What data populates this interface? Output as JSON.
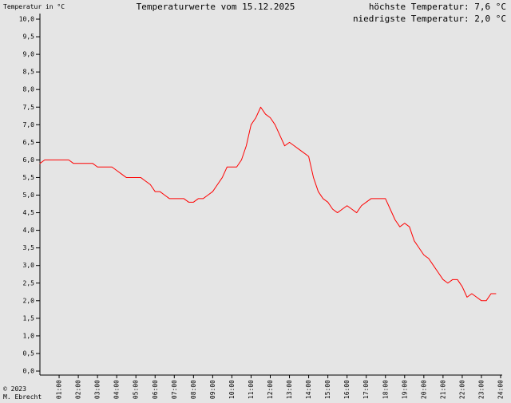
{
  "header": {
    "ylabel": "Temperatur in °C",
    "title": "Temperaturwerte vom 15.12.2025",
    "high": "höchste Temperatur: 7,6 °C",
    "low": "niedrigste Temperatur: 2,0 °C"
  },
  "footer": {
    "copyright": "© 2023",
    "author": "M. Ebrecht"
  },
  "colors": {
    "background": "#e5e5e5",
    "line": "#ff0000",
    "axis": "#000000",
    "text": "#000000"
  },
  "chart_data": {
    "type": "line",
    "title": "Temperaturwerte vom 15.12.2025",
    "xlabel": "",
    "ylabel": "Temperatur in °C",
    "xlim": [
      0,
      24
    ],
    "ylim": [
      0,
      10
    ],
    "grid": false,
    "legend": "none",
    "x_ticks": [
      "01:00",
      "02:00",
      "03:00",
      "04:00",
      "05:00",
      "06:00",
      "07:00",
      "08:00",
      "09:00",
      "10:00",
      "11:00",
      "12:00",
      "13:00",
      "14:00",
      "15:00",
      "16:00",
      "17:00",
      "18:00",
      "19:00",
      "20:00",
      "21:00",
      "22:00",
      "23:00",
      "24:00"
    ],
    "y_ticks": [
      "0,0",
      "0,5",
      "1,0",
      "1,5",
      "2,0",
      "2,5",
      "3,0",
      "3,5",
      "4,0",
      "4,5",
      "5,0",
      "5,5",
      "6,0",
      "6,5",
      "7,0",
      "7,5",
      "8,0",
      "8,5",
      "9,0",
      "9,5",
      "10,0"
    ],
    "series": [
      {
        "x": [
          0.0,
          0.25,
          0.5,
          0.75,
          1.0,
          1.25,
          1.5,
          1.75,
          2.0,
          2.25,
          2.5,
          2.75,
          3.0,
          3.25,
          3.5,
          3.75,
          4.0,
          4.25,
          4.5,
          4.75,
          5.0,
          5.25,
          5.5,
          5.75,
          6.0,
          6.25,
          6.5,
          6.75,
          7.0,
          7.25,
          7.5,
          7.75,
          8.0,
          8.25,
          8.5,
          8.75,
          9.0,
          9.25,
          9.5,
          9.75,
          10.0,
          10.25,
          10.5,
          10.75,
          11.0,
          11.25,
          11.5,
          11.75,
          12.0,
          12.25,
          12.5,
          12.75,
          13.0,
          13.25,
          13.5,
          13.75,
          14.0,
          14.25,
          14.5,
          14.75,
          15.0,
          15.25,
          15.5,
          15.75,
          16.0,
          16.25,
          16.5,
          16.75,
          17.0,
          17.25,
          17.5,
          17.75,
          18.0,
          18.25,
          18.5,
          18.75,
          19.0,
          19.25,
          19.5,
          19.75,
          20.0,
          20.25,
          20.5,
          20.75,
          21.0,
          21.25,
          21.5,
          21.75,
          22.0,
          22.25,
          22.5,
          22.75,
          23.0,
          23.25,
          23.5,
          23.75
        ],
        "values": [
          5.9,
          6.0,
          6.0,
          6.0,
          6.0,
          6.0,
          6.0,
          5.9,
          5.9,
          5.9,
          5.9,
          5.9,
          5.8,
          5.8,
          5.8,
          5.8,
          5.7,
          5.6,
          5.5,
          5.5,
          5.5,
          5.5,
          5.4,
          5.3,
          5.1,
          5.1,
          5.0,
          4.9,
          4.9,
          4.9,
          4.9,
          4.8,
          4.8,
          4.9,
          4.9,
          5.0,
          5.1,
          5.3,
          5.5,
          5.8,
          5.8,
          5.8,
          6.0,
          6.4,
          7.0,
          7.2,
          7.5,
          7.3,
          7.2,
          7.0,
          6.7,
          6.4,
          6.5,
          6.4,
          6.3,
          6.2,
          6.1,
          5.5,
          5.1,
          4.9,
          4.8,
          4.6,
          4.5,
          4.6,
          4.7,
          4.6,
          4.5,
          4.7,
          4.8,
          4.9,
          4.9,
          4.9,
          4.9,
          4.6,
          4.3,
          4.1,
          4.2,
          4.1,
          3.7,
          3.5,
          3.3,
          3.2,
          3.0,
          2.8,
          2.6,
          2.5,
          2.6,
          2.6,
          2.4,
          2.1,
          2.2,
          2.1,
          2.0,
          2.0,
          2.2,
          2.2
        ]
      }
    ]
  }
}
